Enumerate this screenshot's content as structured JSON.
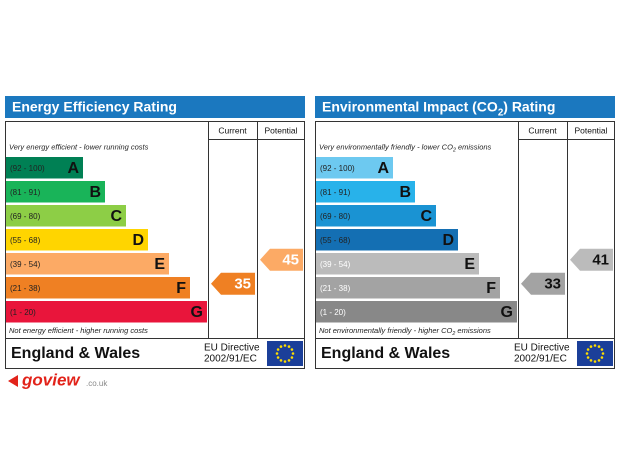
{
  "panels": [
    {
      "title": [
        "Energy Efficiency Rating"
      ],
      "columns": [
        "Current",
        "Potential"
      ],
      "top_note": [
        "Very energy efficient - lower running costs"
      ],
      "bands": [
        {
          "range": "(92 - 100)",
          "letter": "A",
          "color": "#008054"
        },
        {
          "range": "(81 - 91)",
          "letter": "B",
          "color": "#19b459"
        },
        {
          "range": "(69 - 80)",
          "letter": "C",
          "color": "#8dce46"
        },
        {
          "range": "(55 - 68)",
          "letter": "D",
          "color": "#ffd500"
        },
        {
          "range": "(39 - 54)",
          "letter": "E",
          "color": "#fcaa65"
        },
        {
          "range": "(21 - 38)",
          "letter": "F",
          "color": "#ef8023"
        },
        {
          "range": "(1 - 20)",
          "letter": "G",
          "color": "#e9153b"
        }
      ],
      "bottom_note": [
        "Not energy efficient - higher running costs"
      ],
      "current": 35,
      "potential": 45,
      "country": "England & Wales",
      "directive": [
        "EU Directive",
        "2002/91/EC"
      ]
    },
    {
      "title": [
        "Environmental Impact (CO",
        "2",
        ") Rating"
      ],
      "columns": [
        "Current",
        "Potential"
      ],
      "top_note": [
        "Very environmentally friendly - lower CO",
        "2",
        " emissions"
      ],
      "bands": [
        {
          "range": "(92 - 100)",
          "letter": "A",
          "color": "#6dc9f0"
        },
        {
          "range": "(81 - 91)",
          "letter": "B",
          "color": "#28b2ea"
        },
        {
          "range": "(69 - 80)",
          "letter": "C",
          "color": "#1a93d3"
        },
        {
          "range": "(55 - 68)",
          "letter": "D",
          "color": "#146fb3"
        },
        {
          "range": "(39 - 54)",
          "letter": "E",
          "color": "#bbbbbb"
        },
        {
          "range": "(21 - 38)",
          "letter": "F",
          "color": "#a3a3a3"
        },
        {
          "range": "(1 - 20)",
          "letter": "G",
          "color": "#888888"
        }
      ],
      "bottom_note": [
        "Not environmentally friendly - higher CO",
        "2",
        " emissions"
      ],
      "current": 33,
      "potential": 41,
      "country": "England & Wales",
      "directive": [
        "EU Directive",
        "2002/91/EC"
      ]
    }
  ],
  "logo": {
    "name": "goview",
    "suffix": ".co.uk"
  }
}
